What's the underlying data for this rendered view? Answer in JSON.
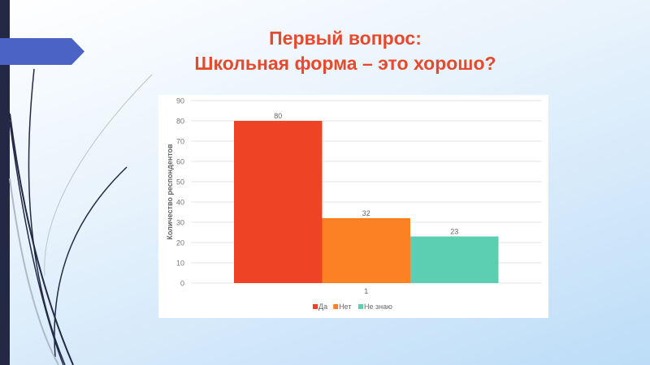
{
  "slide": {
    "title_line1": "Первый вопрос:",
    "title_line2": "Школьная форма – это хорошо?"
  },
  "colors": {
    "title": "#e54a2e",
    "sidebar": "#232845",
    "arrow": "#4a63c4"
  },
  "chart_data": {
    "type": "bar",
    "title": "",
    "categories": [
      "1"
    ],
    "series": [
      {
        "name": "Да",
        "values": [
          80
        ],
        "color": "#ee4324"
      },
      {
        "name": "Нет",
        "values": [
          32
        ],
        "color": "#fb8122"
      },
      {
        "name": "Не знаю",
        "values": [
          23
        ],
        "color": "#5ccfb0"
      }
    ],
    "xlabel": "",
    "ylabel": "Количество респондентов",
    "ylim": [
      0,
      90
    ],
    "yticks": [
      0,
      10,
      20,
      30,
      40,
      50,
      60,
      70,
      80,
      90
    ],
    "grid": true,
    "data_labels": true,
    "legend": "bottom"
  }
}
